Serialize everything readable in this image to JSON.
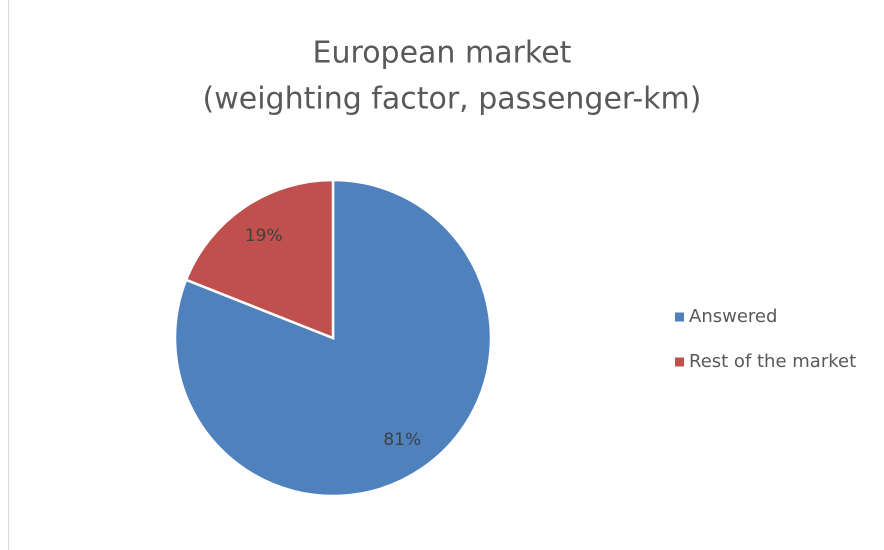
{
  "chart_data": {
    "type": "pie",
    "title": "European market",
    "subtitle": "(weighting factor, passenger-km)",
    "categories": [
      "Answered",
      "Rest of the market"
    ],
    "values": [
      81,
      19
    ],
    "value_labels": [
      "81%",
      "19%"
    ],
    "colors": [
      "#4f81bd",
      "#c0504d"
    ],
    "legend": "right"
  }
}
